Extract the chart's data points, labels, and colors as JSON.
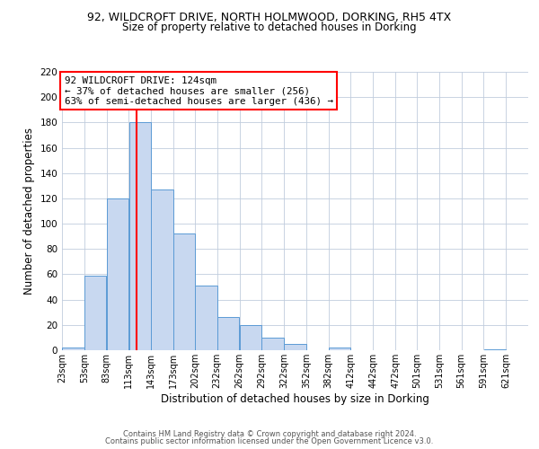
{
  "title_line1": "92, WILDCROFT DRIVE, NORTH HOLMWOOD, DORKING, RH5 4TX",
  "title_line2": "Size of property relative to detached houses in Dorking",
  "xlabel": "Distribution of detached houses by size in Dorking",
  "ylabel": "Number of detached properties",
  "bar_heights": [
    2,
    59,
    120,
    180,
    127,
    92,
    51,
    26,
    20,
    10,
    5,
    0,
    2,
    0,
    0,
    0,
    0,
    0,
    0,
    1
  ],
  "bar_left_edges": [
    23,
    53,
    83,
    113,
    143,
    173,
    202,
    232,
    262,
    292,
    322,
    352,
    382,
    412,
    442,
    472,
    501,
    531,
    561,
    591
  ],
  "bar_widths": [
    30,
    30,
    30,
    30,
    30,
    29,
    30,
    30,
    30,
    30,
    30,
    30,
    30,
    30,
    30,
    29,
    30,
    30,
    30,
    30
  ],
  "tick_labels": [
    "23sqm",
    "53sqm",
    "83sqm",
    "113sqm",
    "143sqm",
    "173sqm",
    "202sqm",
    "232sqm",
    "262sqm",
    "292sqm",
    "322sqm",
    "352sqm",
    "382sqm",
    "412sqm",
    "442sqm",
    "472sqm",
    "501sqm",
    "531sqm",
    "561sqm",
    "591sqm",
    "621sqm"
  ],
  "tick_positions": [
    23,
    53,
    83,
    113,
    143,
    173,
    202,
    232,
    262,
    292,
    322,
    352,
    382,
    412,
    442,
    472,
    501,
    531,
    561,
    591,
    621
  ],
  "bar_fill_color": "#c8d8f0",
  "bar_edge_color": "#5b9bd5",
  "red_line_x": 124,
  "ylim": [
    0,
    220
  ],
  "yticks": [
    0,
    20,
    40,
    60,
    80,
    100,
    120,
    140,
    160,
    180,
    200,
    220
  ],
  "annotation_title": "92 WILDCROFT DRIVE: 124sqm",
  "annotation_line1": "← 37% of detached houses are smaller (256)",
  "annotation_line2": "63% of semi-detached houses are larger (436) →",
  "footer_line1": "Contains HM Land Registry data © Crown copyright and database right 2024.",
  "footer_line2": "Contains public sector information licensed under the Open Government Licence v3.0.",
  "bg_color": "#ffffff",
  "grid_color": "#c0ccdd"
}
